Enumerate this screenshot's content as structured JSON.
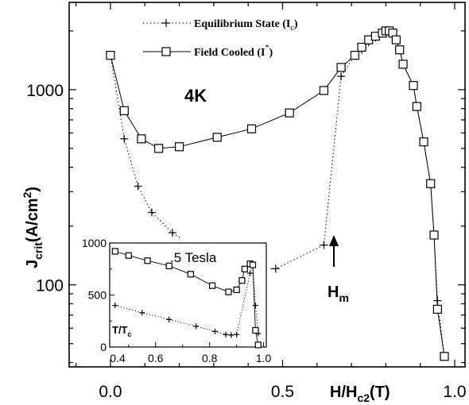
{
  "chart_data": [
    {
      "type": "scatter",
      "title": "",
      "xlabel": "H/H",
      "xlabel_sub": "c2",
      "xlabel_unit": "(T)",
      "ylabel": "J",
      "ylabel_sub": "crit",
      "ylabel_unit": "(A/cm",
      "ylabel_sup": "2",
      "ylabel_close": ")",
      "xlim": [
        -0.12,
        1.03
      ],
      "ylim": [
        38,
        2800
      ],
      "y_scale": "log",
      "x_ticks": [
        0.0,
        0.5,
        1.0
      ],
      "x_tick_labels": [
        "0.0",
        "0.5",
        "1.0"
      ],
      "y_ticks": [
        100,
        1000
      ],
      "y_tick_labels": [
        "100",
        "1000"
      ],
      "legend_position": "top-right",
      "annotations": {
        "temp_label": "4K",
        "hm_label": "H",
        "hm_sub": "m",
        "hm_x": 0.62,
        "hm_y": 95
      },
      "series": [
        {
          "name": "Equilibrium State (I",
          "name_sub": "c",
          "name_close": ")",
          "marker": "plus",
          "line": "dotted",
          "x": [
            0.0,
            0.04,
            0.08,
            0.12,
            0.18,
            0.28,
            0.38,
            0.48,
            0.62,
            0.67,
            0.71,
            0.73,
            0.75,
            0.77,
            0.79,
            0.8,
            0.81,
            0.82,
            0.83,
            0.84,
            0.85,
            0.88,
            0.89,
            0.91,
            0.93,
            0.94,
            0.95,
            0.97
          ],
          "y": [
            1500,
            560,
            320,
            235,
            185,
            140,
            121,
            121,
            160,
            1170,
            1500,
            1600,
            1750,
            1850,
            1950,
            2000,
            2000,
            1950,
            1800,
            1600,
            1350,
            1050,
            820,
            540,
            330,
            180,
            83,
            43
          ]
        },
        {
          "name": "Field Cooled (I",
          "name_sup": "*",
          "name_close": ")",
          "marker": "square",
          "line": "solid",
          "x": [
            0.0,
            0.04,
            0.09,
            0.14,
            0.2,
            0.31,
            0.41,
            0.52,
            0.62,
            0.67,
            0.71,
            0.73,
            0.75,
            0.77,
            0.79,
            0.8,
            0.81,
            0.82,
            0.83,
            0.84,
            0.85,
            0.88,
            0.89,
            0.91,
            0.93,
            0.94,
            0.95,
            0.97
          ],
          "y": [
            1500,
            780,
            560,
            500,
            510,
            570,
            630,
            760,
            990,
            1300,
            1500,
            1650,
            1800,
            1880,
            1950,
            2000,
            2000,
            1950,
            1800,
            1600,
            1350,
            1050,
            820,
            540,
            330,
            180,
            75,
            43
          ]
        }
      ]
    },
    {
      "type": "scatter",
      "title": "",
      "xlabel": "T/T",
      "xlabel_sub": "c",
      "ylabel": "",
      "annotation": ".5 Tesla",
      "xlim": [
        0.43,
        1.01
      ],
      "ylim": [
        0,
        1000
      ],
      "x_ticks": [
        0.4,
        0.6,
        0.8,
        1.0
      ],
      "x_tick_labels": [
        "0.4",
        "0.6",
        "0.8",
        "1.0"
      ],
      "y_ticks": [
        0,
        500,
        1000
      ],
      "y_tick_labels": [
        "0",
        "500",
        "1000"
      ],
      "series": [
        {
          "name": "",
          "marker": "plus",
          "line": "dotted",
          "x": [
            0.45,
            0.55,
            0.65,
            0.75,
            0.82,
            0.86,
            0.88,
            0.9,
            0.95,
            0.96,
            0.97,
            0.98
          ],
          "y": [
            400,
            330,
            265,
            200,
            150,
            120,
            115,
            120,
            710,
            780,
            400,
            130
          ]
        },
        {
          "name": "",
          "marker": "square",
          "line": "solid",
          "x": [
            0.45,
            0.5,
            0.57,
            0.65,
            0.73,
            0.81,
            0.87,
            0.9,
            0.92,
            0.93,
            0.95,
            0.96,
            0.97,
            0.98
          ],
          "y": [
            920,
            880,
            830,
            780,
            700,
            590,
            530,
            550,
            640,
            750,
            800,
            790,
            160,
            20
          ]
        }
      ]
    }
  ]
}
